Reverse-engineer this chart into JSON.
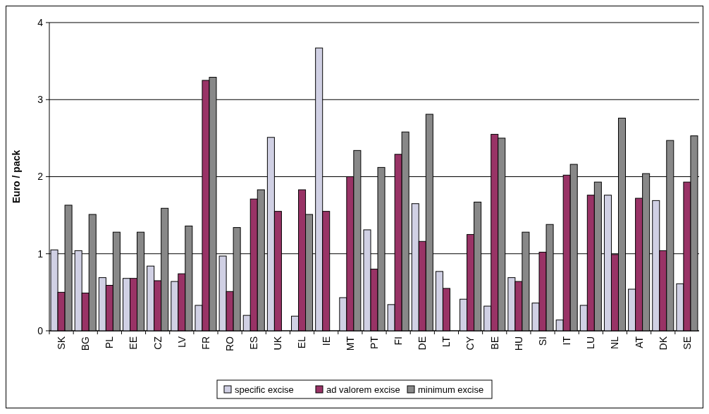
{
  "chart_data": {
    "type": "bar",
    "ylabel": "Euro / pack",
    "categories": [
      "SK",
      "BG",
      "PL",
      "EE",
      "CZ",
      "LV",
      "FR",
      "RO",
      "ES",
      "UK",
      "EL",
      "IE",
      "MT",
      "PT",
      "FI",
      "DE",
      "LT",
      "CY",
      "BE",
      "HU",
      "SI",
      "IT",
      "LU",
      "NL",
      "AT",
      "DK",
      "SE"
    ],
    "series": [
      {
        "name": "specific excise",
        "color": "#d0d0e4",
        "values": [
          1.05,
          1.04,
          0.69,
          0.68,
          0.84,
          0.64,
          0.33,
          0.97,
          0.2,
          2.51,
          0.19,
          3.67,
          0.43,
          1.31,
          0.34,
          1.65,
          0.77,
          0.41,
          0.32,
          0.69,
          0.36,
          0.14,
          0.33,
          1.76,
          0.54,
          1.69,
          0.61
        ]
      },
      {
        "name": "ad valorem excise",
        "color": "#993366",
        "values": [
          0.5,
          0.49,
          0.59,
          0.68,
          0.65,
          0.74,
          3.25,
          0.51,
          1.71,
          1.55,
          1.83,
          1.55,
          2.0,
          0.8,
          2.29,
          1.16,
          0.55,
          1.25,
          2.55,
          0.64,
          1.02,
          2.02,
          1.76,
          0.99,
          1.72,
          1.04,
          1.93
        ]
      },
      {
        "name": "minimum excise",
        "color": "#888888",
        "values": [
          1.63,
          1.51,
          1.28,
          1.28,
          1.59,
          1.36,
          3.29,
          1.34,
          1.83,
          null,
          1.51,
          null,
          2.34,
          2.12,
          2.58,
          2.81,
          null,
          1.67,
          2.5,
          1.28,
          1.38,
          2.16,
          1.93,
          2.76,
          2.04,
          2.47,
          2.53
        ]
      }
    ],
    "ylim": [
      0,
      4
    ],
    "yticks": [
      0,
      1,
      2,
      3,
      4
    ],
    "grid": "y",
    "legend": "bottom"
  }
}
